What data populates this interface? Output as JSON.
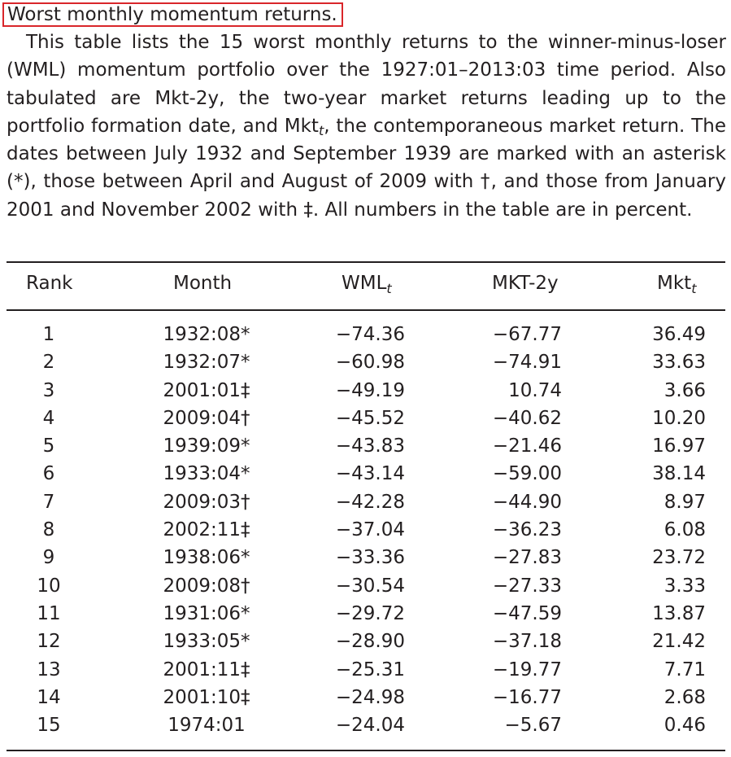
{
  "caption": {
    "title": "Worst monthly momentum returns.",
    "text_before_sub": "This table lists the 15 worst monthly returns to the winner-minus-loser (WML) momentum portfolio over the 1927:01–2013:03 time period. Also tabulated are Mkt-2y, the two-year market returns leading up to the portfolio formation date, and Mkt",
    "subscript": "t",
    "text_after_sub": ", the contemporaneous market return. The dates between July 1932 and September 1939 are marked with an asterisk (*), those between April and August of 2009 with †, and those from January 2001 and November 2002 with ‡. All numbers in the table are in percent."
  },
  "table": {
    "headers": {
      "rank": "Rank",
      "month": "Month",
      "wml": "WML",
      "wml_sub": "t",
      "mkt2y": "MKT-2y",
      "mkt": "Mkt",
      "mkt_sub": "t"
    },
    "rows": [
      {
        "rank": "1",
        "month": "1932:08*",
        "wml": "−74.36",
        "mkt2y": "−67.77",
        "mkt": "36.49"
      },
      {
        "rank": "2",
        "month": "1932:07*",
        "wml": "−60.98",
        "mkt2y": "−74.91",
        "mkt": "33.63"
      },
      {
        "rank": "3",
        "month": "2001:01‡",
        "wml": "−49.19",
        "mkt2y": "10.74",
        "mkt": "3.66"
      },
      {
        "rank": "4",
        "month": "2009:04†",
        "wml": "−45.52",
        "mkt2y": "−40.62",
        "mkt": "10.20"
      },
      {
        "rank": "5",
        "month": "1939:09*",
        "wml": "−43.83",
        "mkt2y": "−21.46",
        "mkt": "16.97"
      },
      {
        "rank": "6",
        "month": "1933:04*",
        "wml": "−43.14",
        "mkt2y": "−59.00",
        "mkt": "38.14"
      },
      {
        "rank": "7",
        "month": "2009:03†",
        "wml": "−42.28",
        "mkt2y": "−44.90",
        "mkt": "8.97"
      },
      {
        "rank": "8",
        "month": "2002:11‡",
        "wml": "−37.04",
        "mkt2y": "−36.23",
        "mkt": "6.08"
      },
      {
        "rank": "9",
        "month": "1938:06*",
        "wml": "−33.36",
        "mkt2y": "−27.83",
        "mkt": "23.72"
      },
      {
        "rank": "10",
        "month": "2009:08†",
        "wml": "−30.54",
        "mkt2y": "−27.33",
        "mkt": "3.33"
      },
      {
        "rank": "11",
        "month": "1931:06*",
        "wml": "−29.72",
        "mkt2y": "−47.59",
        "mkt": "13.87"
      },
      {
        "rank": "12",
        "month": "1933:05*",
        "wml": "−28.90",
        "mkt2y": "−37.18",
        "mkt": "21.42"
      },
      {
        "rank": "13",
        "month": "2001:11‡",
        "wml": "−25.31",
        "mkt2y": "−19.77",
        "mkt": "7.71"
      },
      {
        "rank": "14",
        "month": "2001:10‡",
        "wml": "−24.98",
        "mkt2y": "−16.77",
        "mkt": "2.68"
      },
      {
        "rank": "15",
        "month": "1974:01",
        "wml": "−24.04",
        "mkt2y": "−5.67",
        "mkt": "0.46"
      }
    ]
  },
  "colors": {
    "text": "#231f20",
    "highlight_border": "#d9262a"
  }
}
